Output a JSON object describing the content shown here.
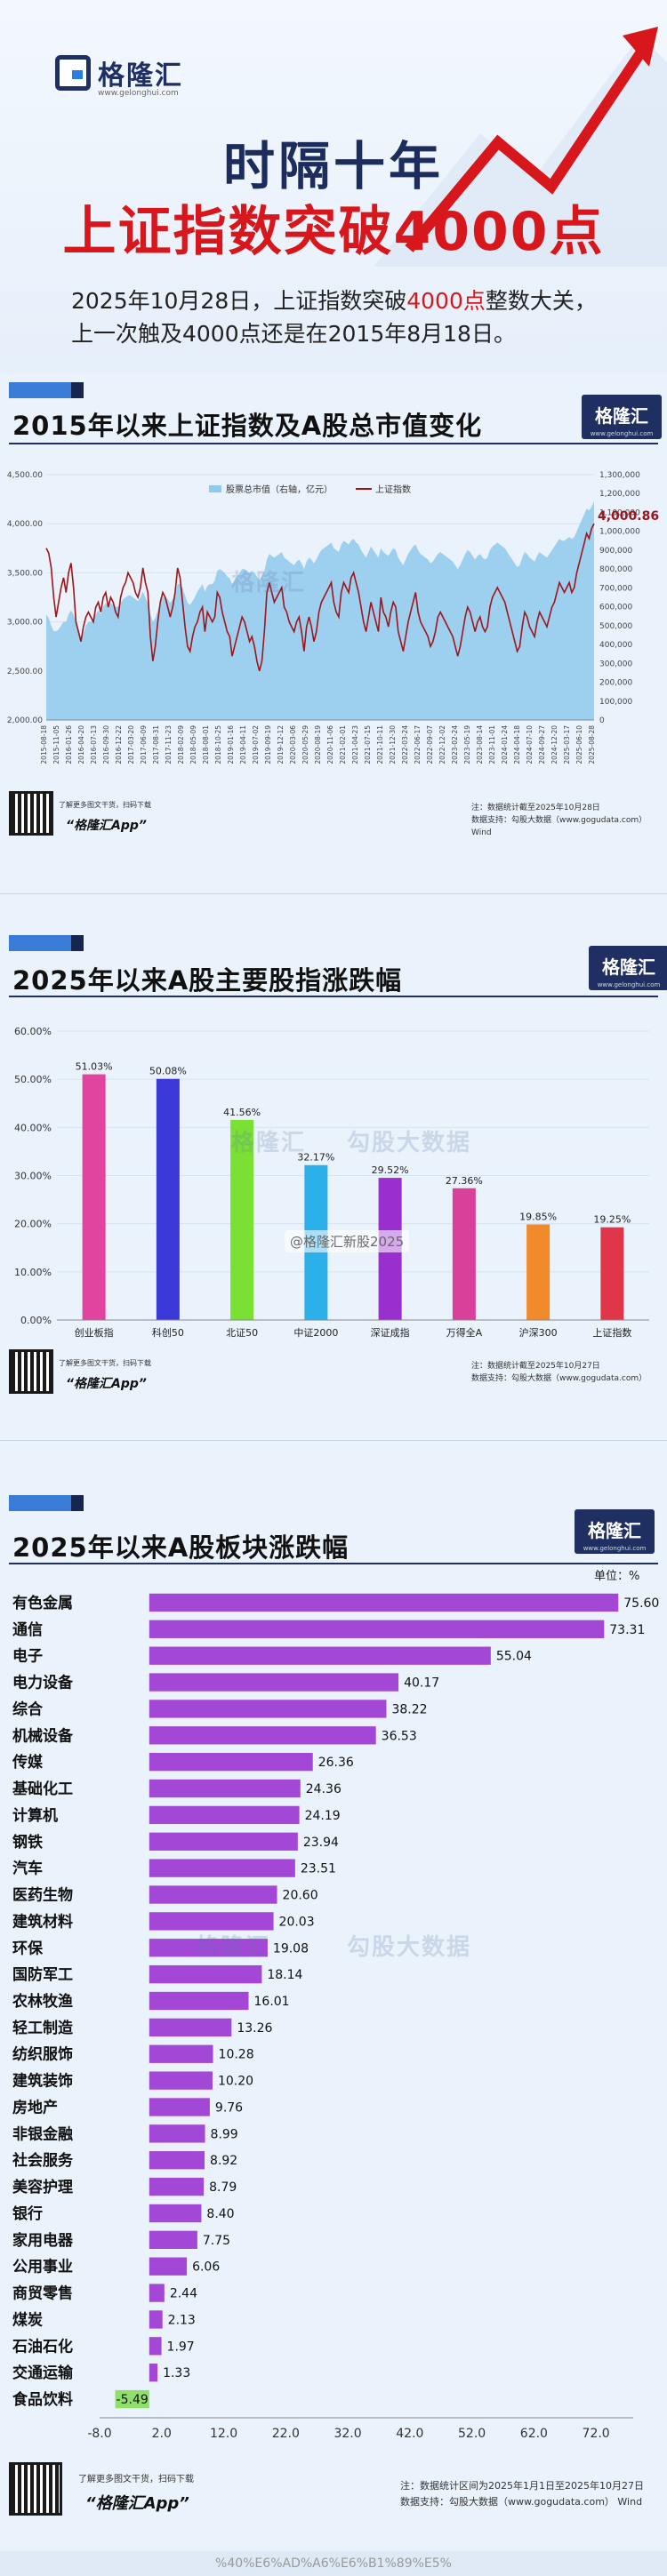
{
  "brand": {
    "name": "格隆汇",
    "url": "www.gelonghui.com",
    "badge_url": "www.gelonghui.com"
  },
  "headline": {
    "line1": "时隔十年",
    "line2": "上证指数突破4000点"
  },
  "intro": {
    "part1": "2025年10月28日，上证指数突破",
    "highlight": "4000点",
    "part2": "整数大关，",
    "line2": "上一次触及4000点还是在2015年8月18日。"
  },
  "footer": {
    "scan_text": "了解更多图文干货，扫码下载",
    "app_name": "“格隆汇App”"
  },
  "watermark": {
    "text1": "格隆汇",
    "text2": "勾股大数据"
  },
  "weibo_text": "@格隆汇新股2025",
  "bottom_strip": "%40%E6%AD%A6%E6%B1%89%E5%",
  "charts": [
    {
      "title": "2015年以来上证指数及A股总市值变化",
      "note_line1": "注：数据统计截至2025年10月28日",
      "note_line2": "数据支持：勾股大数据（www.gogudata.com） Wind"
    },
    {
      "title": "2025年以来A股主要股指涨跌幅",
      "note_line1": "注：数据统计截至2025年10月27日",
      "note_line2": "数据支持：勾股大数据（www.gogudata.com）"
    },
    {
      "title": "2025年以来A股板块涨跌幅",
      "unit": "单位：%",
      "note_line1": "注：数据统计区间为2025年1月1日至2025年10月27日",
      "note_line2": "数据支持：勾股大数据（www.gogudata.com） Wind"
    }
  ],
  "chart_data": [
    {
      "type": "line",
      "legend": [
        "股票总市值（右轴，亿元）",
        "上证指数"
      ],
      "left_axis": {
        "ylim": [
          2000,
          4500
        ],
        "ticks": [
          "2,000.00",
          "2,500.00",
          "3,000.00",
          "3,500.00",
          "4,000.00",
          "4,500.00"
        ]
      },
      "right_axis": {
        "ylim": [
          0,
          1300000
        ],
        "ticks": [
          "0",
          "100,000",
          "200,000",
          "300,000",
          "400,000",
          "500,000",
          "600,000",
          "700,000",
          "800,000",
          "900,000",
          "1,000,000",
          "1,100,000",
          "1,200,000",
          "1,300,000"
        ]
      },
      "x_labels": [
        "2015-08-18",
        "2015-11-05",
        "2016-01-26",
        "2016-04-20",
        "2016-07-13",
        "2016-09-30",
        "2016-12-22",
        "2017-03-20",
        "2017-06-09",
        "2017-08-31",
        "2017-11-23",
        "2018-02-09",
        "2018-05-09",
        "2018-08-01",
        "2018-10-25",
        "2019-01-16",
        "2019-04-11",
        "2019-07-02",
        "2019-09-19",
        "2019-12-12",
        "2020-03-06",
        "2020-05-29",
        "2020-08-19",
        "2020-11-06",
        "2021-02-01",
        "2021-04-23",
        "2021-07-15",
        "2021-10-11",
        "2021-12-30",
        "2022-03-24",
        "2022-06-17",
        "2022-09-07",
        "2022-12-02",
        "2023-02-24",
        "2023-05-19",
        "2023-08-14",
        "2023-11-01",
        "2024-01-24",
        "2024-04-18",
        "2024-07-10",
        "2024-09-27",
        "2024-12-20",
        "2025-03-17",
        "2025-06-10",
        "2025-08-28"
      ],
      "index_series": [
        3750,
        3700,
        3550,
        3250,
        3050,
        3200,
        3350,
        3450,
        3300,
        3500,
        3600,
        3350,
        3000,
        2900,
        2800,
        2950,
        3050,
        3100,
        3050,
        3000,
        3150,
        3200,
        3100,
        3250,
        3300,
        3150,
        3250,
        3200,
        3100,
        3050,
        3250,
        3350,
        3400,
        3500,
        3450,
        3400,
        3300,
        3250,
        3350,
        3550,
        3400,
        3300,
        2850,
        2600,
        2750,
        3000,
        3200,
        3300,
        3250,
        3150,
        3050,
        3150,
        3300,
        3550,
        3450,
        3200,
        2950,
        2750,
        2700,
        2850,
        2950,
        3000,
        3100,
        3150,
        2900,
        3100,
        3050,
        3000,
        3050,
        3300,
        3250,
        3100,
        3000,
        2900,
        2850,
        2650,
        2750,
        2850,
        2950,
        3050,
        3000,
        2900,
        2800,
        2850,
        2750,
        2600,
        2500,
        2600,
        2900,
        3300,
        3400,
        3300,
        3200,
        3250,
        3300,
        3350,
        3150,
        3100,
        3000,
        2950,
        2900,
        3000,
        3050,
        2900,
        2700,
        2950,
        3050,
        2950,
        2800,
        2900,
        3100,
        3200,
        3250,
        3300,
        3350,
        3400,
        3200,
        3100,
        3050,
        3300,
        3400,
        3350,
        3300,
        3450,
        3500,
        3400,
        3300,
        3150,
        3000,
        2900,
        3050,
        3200,
        3100,
        3000,
        2900,
        3250,
        3100,
        3050,
        2950,
        3100,
        3200,
        3150,
        2900,
        2800,
        2700,
        2850,
        3000,
        3100,
        3200,
        3300,
        3100,
        3000,
        2950,
        2900,
        2850,
        2750,
        2800,
        2900,
        3050,
        3100,
        3050,
        3000,
        2950,
        2900,
        2850,
        2750,
        2650,
        2750,
        2900,
        3050,
        3150,
        3100,
        3000,
        2900,
        3000,
        3050,
        2950,
        2900,
        2950,
        3150,
        3250,
        3300,
        3350,
        3300,
        3250,
        3200,
        3100,
        3000,
        2900,
        2800,
        2700,
        2750,
        2950,
        3100,
        3050,
        2950,
        2900,
        2850,
        3000,
        3100,
        3050,
        3000,
        2950,
        3050,
        3150,
        3200,
        3300,
        3400,
        3350,
        3300,
        3350,
        3400,
        3300,
        3350,
        3500,
        3600,
        3700,
        3800,
        3900,
        3850,
        3950,
        4000.86
      ],
      "cap_series": [
        560000,
        540000,
        500000,
        470000,
        470000,
        480000,
        500000,
        520000,
        520000,
        560000,
        580000,
        560000,
        520000,
        480000,
        440000,
        460000,
        500000,
        520000,
        520000,
        540000,
        560000,
        580000,
        560000,
        600000,
        620000,
        600000,
        620000,
        610000,
        600000,
        600000,
        620000,
        640000,
        650000,
        660000,
        660000,
        650000,
        640000,
        630000,
        650000,
        680000,
        650000,
        620000,
        560000,
        520000,
        540000,
        580000,
        620000,
        650000,
        650000,
        640000,
        620000,
        640000,
        670000,
        720000,
        720000,
        700000,
        660000,
        620000,
        610000,
        630000,
        650000,
        680000,
        700000,
        720000,
        680000,
        710000,
        720000,
        720000,
        740000,
        790000,
        800000,
        790000,
        780000,
        760000,
        750000,
        720000,
        740000,
        760000,
        780000,
        800000,
        800000,
        790000,
        780000,
        790000,
        780000,
        760000,
        740000,
        760000,
        790000,
        850000,
        880000,
        870000,
        860000,
        870000,
        880000,
        890000,
        860000,
        850000,
        840000,
        830000,
        820000,
        840000,
        850000,
        830000,
        800000,
        840000,
        860000,
        850000,
        830000,
        850000,
        880000,
        900000,
        910000,
        920000,
        930000,
        940000,
        910000,
        900000,
        890000,
        930000,
        950000,
        940000,
        930000,
        950000,
        960000,
        940000,
        930000,
        900000,
        880000,
        860000,
        890000,
        920000,
        900000,
        880000,
        860000,
        910000,
        890000,
        880000,
        870000,
        890000,
        910000,
        900000,
        860000,
        840000,
        820000,
        850000,
        880000,
        900000,
        920000,
        930000,
        900000,
        880000,
        870000,
        860000,
        850000,
        830000,
        840000,
        860000,
        880000,
        890000,
        880000,
        870000,
        860000,
        850000,
        840000,
        820000,
        800000,
        820000,
        850000,
        880000,
        900000,
        890000,
        870000,
        850000,
        870000,
        880000,
        860000,
        850000,
        860000,
        900000,
        920000,
        930000,
        940000,
        930000,
        920000,
        910000,
        890000,
        870000,
        850000,
        830000,
        810000,
        820000,
        860000,
        890000,
        880000,
        860000,
        850000,
        840000,
        870000,
        890000,
        880000,
        870000,
        860000,
        880000,
        900000,
        920000,
        940000,
        960000,
        950000,
        950000,
        960000,
        970000,
        960000,
        970000,
        1000000,
        1030000,
        1060000,
        1090000,
        1120000,
        1110000,
        1130000,
        1160000
      ],
      "last_value_label": "4,000.86",
      "colors": {
        "index": "#a0141b",
        "cap": "#8fc9ec"
      }
    },
    {
      "type": "bar",
      "categories": [
        "创业板指",
        "科创50",
        "北证50",
        "中证2000",
        "深证成指",
        "万得全A",
        "沪深300",
        "上证指数"
      ],
      "values": [
        51.03,
        50.08,
        41.56,
        32.17,
        29.52,
        27.36,
        19.85,
        19.25
      ],
      "labels": [
        "51.03%",
        "50.08%",
        "41.56%",
        "32.17%",
        "29.52%",
        "27.36%",
        "19.85%",
        "19.25%"
      ],
      "ylim": [
        0,
        60
      ],
      "y_ticks": [
        "0.00%",
        "10.00%",
        "20.00%",
        "30.00%",
        "40.00%",
        "50.00%",
        "60.00%"
      ],
      "colors": [
        "#e0449e",
        "#3b3ad8",
        "#7ae034",
        "#2bb0ea",
        "#9a2fd0",
        "#d8409a",
        "#f08a2a",
        "#e0364a"
      ]
    },
    {
      "type": "bar",
      "orientation": "horizontal",
      "categories": [
        "有色金属",
        "通信",
        "电子",
        "电力设备",
        "综合",
        "机械设备",
        "传媒",
        "基础化工",
        "计算机",
        "钢铁",
        "汽车",
        "医药生物",
        "建筑材料",
        "环保",
        "国防军工",
        "农林牧渔",
        "轻工制造",
        "纺织服饰",
        "建筑装饰",
        "房地产",
        "非银金融",
        "社会服务",
        "美容护理",
        "银行",
        "家用电器",
        "公用事业",
        "商贸零售",
        "煤炭",
        "石油石化",
        "交通运输",
        "食品饮料"
      ],
      "values": [
        75.6,
        73.31,
        55.04,
        40.17,
        38.22,
        36.53,
        26.36,
        24.36,
        24.19,
        23.94,
        23.51,
        20.6,
        20.03,
        19.08,
        18.14,
        16.01,
        13.26,
        10.28,
        10.2,
        9.76,
        8.99,
        8.92,
        8.79,
        8.4,
        7.75,
        6.06,
        2.44,
        2.13,
        1.97,
        1.33,
        -5.49
      ],
      "labels": [
        "75.60",
        "73.31",
        "55.04",
        "40.17",
        "38.22",
        "36.53",
        "26.36",
        "24.36",
        "24.19",
        "23.94",
        "23.51",
        "20.60",
        "20.03",
        "19.08",
        "18.14",
        "16.01",
        "13.26",
        "10.28",
        "10.20",
        "9.76",
        "8.99",
        "8.92",
        "8.79",
        "8.40",
        "7.75",
        "6.06",
        "2.44",
        "2.13",
        "1.97",
        "1.33",
        "-5.49"
      ],
      "xlim": [
        -8,
        78
      ],
      "x_ticks": [
        "-8.0",
        "2.0",
        "12.0",
        "22.0",
        "32.0",
        "42.0",
        "52.0",
        "62.0",
        "72.0"
      ],
      "colors": {
        "positive": "#a247d6",
        "negative": "#8fe06a"
      }
    }
  ]
}
